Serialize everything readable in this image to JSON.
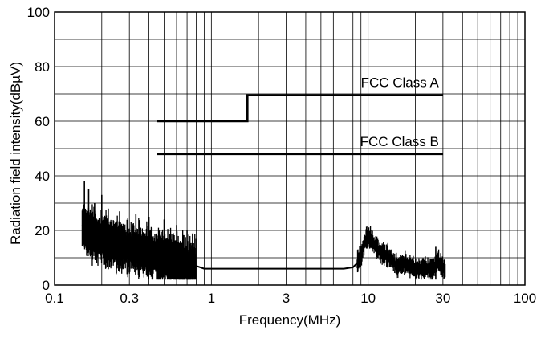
{
  "chart_data": {
    "type": "line",
    "xlabel": "Frequency(MHz)",
    "ylabel": "Radiation field intensity(dBµV)",
    "x_scale": "log",
    "xlim": [
      0.1,
      100
    ],
    "ylim": [
      0,
      100
    ],
    "x_tick_labels": [
      "0.1",
      "0.3",
      "1",
      "3",
      "10",
      "30",
      "100"
    ],
    "x_tick_values": [
      0.1,
      0.3,
      1,
      3,
      10,
      30,
      100
    ],
    "y_tick_labels": [
      "0",
      "20",
      "40",
      "60",
      "80",
      "100"
    ],
    "y_tick_values": [
      0,
      20,
      40,
      60,
      80,
      100
    ],
    "grid": true,
    "limit_lines": [
      {
        "name": "FCC Class A",
        "x": [
          0.45,
          1.7,
          1.7,
          30
        ],
        "y": [
          60,
          60,
          69.5,
          69.5
        ]
      },
      {
        "name": "FCC Class B",
        "x": [
          0.45,
          30
        ],
        "y": [
          48,
          48
        ]
      }
    ],
    "series": [
      {
        "x": [
          0.15,
          0.16,
          0.18,
          0.2,
          0.25,
          0.3,
          0.35,
          0.4,
          0.5,
          0.6,
          0.7,
          0.75,
          0.8,
          0.9,
          1,
          1.5,
          2,
          3,
          5,
          7,
          8,
          8.5,
          9,
          9.5,
          10,
          11,
          12,
          14,
          15,
          17,
          20,
          22,
          25,
          27,
          28,
          30,
          31
        ],
        "y": [
          22,
          20,
          18,
          17,
          15,
          14,
          13,
          12,
          10,
          9,
          8,
          8,
          7,
          6,
          6,
          6,
          6,
          6,
          6,
          6,
          6.5,
          8,
          11,
          16,
          18,
          15,
          12,
          10,
          7,
          8,
          6,
          6,
          6,
          7,
          9,
          6,
          6
        ]
      }
    ],
    "spikes": [
      {
        "x": 0.155,
        "y": 38
      },
      {
        "x": 0.165,
        "y": 35
      },
      {
        "x": 0.18,
        "y": 30
      },
      {
        "x": 0.2,
        "y": 33
      },
      {
        "x": 0.22,
        "y": 28
      },
      {
        "x": 0.26,
        "y": 27
      },
      {
        "x": 0.33,
        "y": 26
      },
      {
        "x": 0.4,
        "y": 25
      },
      {
        "x": 0.5,
        "y": 24
      },
      {
        "x": 0.6,
        "y": 22
      },
      {
        "x": 0.7,
        "y": 20
      },
      {
        "x": 27,
        "y": 14
      }
    ]
  }
}
